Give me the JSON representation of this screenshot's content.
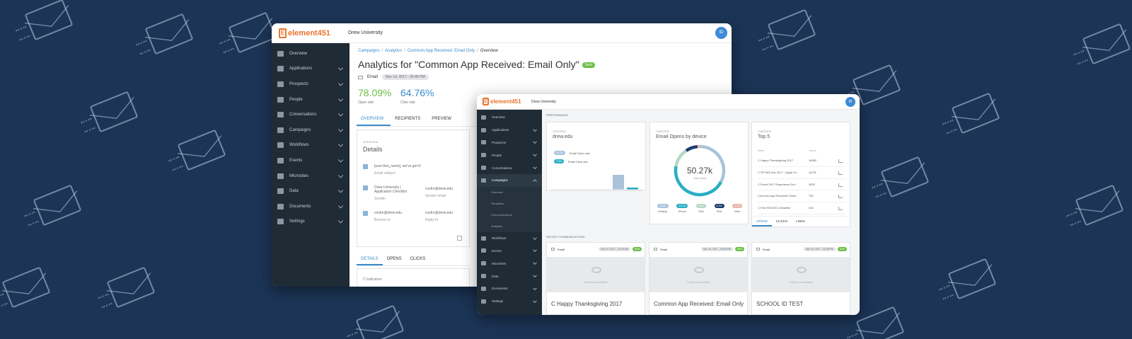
{
  "back_window": {
    "logo": "element451",
    "university": "Drew University",
    "avatar": "ID",
    "nav": [
      "Overview",
      "Applications",
      "Prospects",
      "People",
      "Conversations",
      "Campaigns",
      "Workflows",
      "Events",
      "Microsites",
      "Data",
      "Documents",
      "Settings"
    ],
    "breadcrumb": [
      "Campaigns",
      "Analytics",
      "Common App Received: Email Only",
      "Overview"
    ],
    "title": "Analytics for \"Common App Received: Email Only\"",
    "status": "Sent",
    "channel": "Email",
    "date": "Nov 14, 2017 - 05:48 PM",
    "open_rate": "78.09%",
    "open_rate_label": "Open rate",
    "click_rate": "64.76%",
    "click_rate_label": "Click rate",
    "tabs": [
      "OVERVIEW",
      "RECIPIENTS",
      "PREVIEW"
    ],
    "details_label": "OVERVIEW",
    "details_title": "Details",
    "subject_value": "[user.first_name], we've got it!",
    "subject_label": "Email subject",
    "sender_value": "Drew University | Application Checklist",
    "sender_label": "Sender",
    "sender_email_value": "cosfre@drew.edu",
    "sender_email_label": "Sender email",
    "bounce_value": "cosfre@drew.edu",
    "bounce_label": "Bounce to",
    "reply_value": "cosfre@drew.edu",
    "reply_label": "Reply to",
    "bottom_tabs": [
      "DETAILS",
      "OPENS",
      "CLICKS"
    ],
    "footer_text": "C Indicators"
  },
  "front_window": {
    "logo": "element451",
    "university": "Drew University",
    "avatar": "ID",
    "nav": [
      "Overview",
      "Applications",
      "Prospects",
      "People",
      "Conversations",
      "Campaigns"
    ],
    "sub_nav": [
      "Overview",
      "Templates",
      "Communications",
      "Analytics"
    ],
    "nav_after": [
      "Workflows",
      "Events",
      "Microsites",
      "Data",
      "Documents",
      "Settings"
    ],
    "section_performance": "PERFORMANCE",
    "card1_label": "OVERVIEW",
    "card1_title": "drew.edu",
    "card1_legend": [
      {
        "badge": "26.2%",
        "text": "Email Open rate",
        "color": "#a9c3da"
      },
      {
        "badge": "3.3%",
        "text": "Email Click rate",
        "color": "#29aec4"
      }
    ],
    "card2_label": "OVERVIEW",
    "card2_title": "Email Opens by device",
    "donut_value": "50.27k",
    "donut_sub": "Total Opens",
    "devices": [
      {
        "badge": "24.9%",
        "name": "Desktop",
        "color": "#a9c3da"
      },
      {
        "badge": "34.1%",
        "name": "iPhone",
        "color": "#29aec4"
      },
      {
        "badge": "9.6%",
        "name": "iPad",
        "color": "#b5d9c4"
      },
      {
        "badge": "6.1%",
        "name": "iPod",
        "color": "#1f3c6e"
      },
      {
        "badge": "1.1%",
        "name": "Other",
        "color": "#e8b6a6"
      }
    ],
    "card3_label": "OVERVIEW",
    "card3_title": "Top 5",
    "top5_col1": "Name",
    "top5_col2": "Opens",
    "top5": [
      {
        "name": "C Happy Thanksgiving 2017",
        "value": "18352"
      },
      {
        "name": "C SP INQ Nov 2017 - Apply Sc...",
        "value": "11178"
      },
      {
        "name": "C Event 2017 Experience Dre...",
        "value": "4032"
      },
      {
        "name": "Common App Received: Emai...",
        "value": "752"
      },
      {
        "name": "C Fall 2018 ED1 Deadline",
        "value": "444"
      }
    ],
    "card3_tabs": [
      "OPENS",
      "CLICKS",
      "LINKS"
    ],
    "section_recent": "RECENT COMMUNICATIONS",
    "recent": [
      {
        "channel": "Email",
        "date": "Nov 22, 2017 - 10:40 AM",
        "status": "Sent",
        "preview": "Preview not available",
        "title": "C Happy Thanksgiving 2017"
      },
      {
        "channel": "Email",
        "date": "Nov 14, 2017 - 05:48 PM",
        "status": "Sent",
        "preview": "Preview not available",
        "title": "Common App Received: Email Only"
      },
      {
        "channel": "Email",
        "date": "Nov 14, 2017 - 02:38 PM",
        "status": "Sent",
        "preview": "Preview not available",
        "title": "SCHOOL ID TEST"
      }
    ]
  },
  "colors": {
    "background": "#1c3557",
    "brand": "#e8742d",
    "accent": "#3a8cc9",
    "sidebar": "#1f2b35",
    "sent": "#6bbf46"
  }
}
